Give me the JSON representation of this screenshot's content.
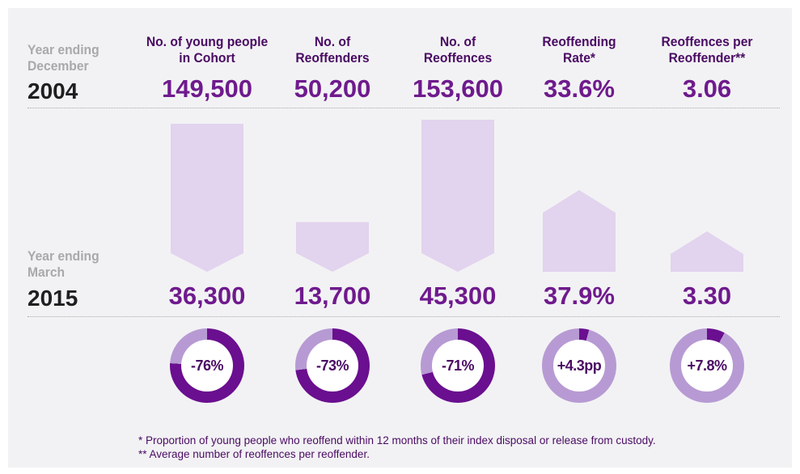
{
  "labels": {
    "year1_line1": "Year ending",
    "year1_line2": "December",
    "year1": "2004",
    "year2_line1": "Year ending",
    "year2_line2": "March",
    "year2": "2015"
  },
  "colors": {
    "heading": "#4a0b63",
    "value": "#6f1a8d",
    "shape_fill": "#e2d3ee",
    "ring_dark": "#6a0f8f",
    "ring_light": "#b79ad3",
    "background": "#f2f2f4"
  },
  "chart_data": {
    "type": "table",
    "columns": [
      {
        "header_line1": "No. of young people",
        "header_line2": "in Cohort",
        "v2004": 149500,
        "v2004_label": "149,500",
        "v2015": 36300,
        "v2015_label": "36,300",
        "change_label": "-76%",
        "change_fraction": 0.76,
        "direction": "down"
      },
      {
        "header_line1": "No. of",
        "header_line2": "Reoffenders",
        "v2004": 50200,
        "v2004_label": "50,200",
        "v2015": 13700,
        "v2015_label": "13,700",
        "change_label": "-73%",
        "change_fraction": 0.73,
        "direction": "down"
      },
      {
        "header_line1": "No. of",
        "header_line2": "Reoffences",
        "v2004": 153600,
        "v2004_label": "153,600",
        "v2015": 45300,
        "v2015_label": "45,300",
        "change_label": "-71%",
        "change_fraction": 0.71,
        "direction": "down"
      },
      {
        "header_line1": "Reoffending",
        "header_line2": "Rate*",
        "v2004": 33.6,
        "v2004_label": "33.6%",
        "v2015": 37.9,
        "v2015_label": "37.9%",
        "change_label": "+4.3pp",
        "change_fraction": 0.043,
        "direction": "up"
      },
      {
        "header_line1": "Reoffences per",
        "header_line2": "Reoffender**",
        "v2004": 3.06,
        "v2004_label": "3.06",
        "v2015": 3.3,
        "v2015_label": "3.30",
        "change_label": "+7.8%",
        "change_fraction": 0.078,
        "direction": "up"
      }
    ]
  },
  "footnotes": [
    "*  Proportion of young people who reoffend within 12 months of their index disposal or release from custody.",
    "** Average number of reoffences per reoffender."
  ]
}
